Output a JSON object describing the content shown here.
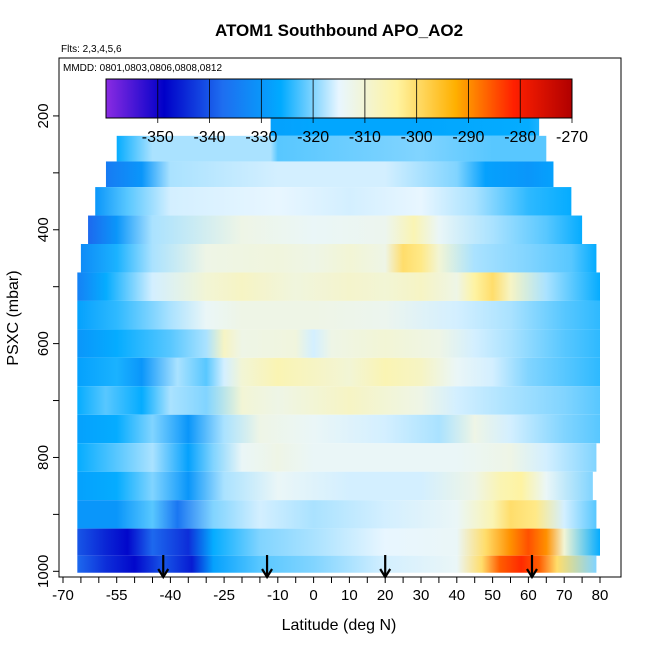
{
  "chart_data": {
    "type": "heatmap",
    "title": "ATOM1 Southbound APO_AO2",
    "flights_label": "Flts: 2,3,4,5,6",
    "dates_label": "MMDD: 0801,0803,0806,0808,0812",
    "xlabel": "Latitude (deg N)",
    "ylabel": "PSXC (mbar)",
    "xlim": [
      -70,
      80
    ],
    "ylim": [
      1010,
      100
    ],
    "x_ticks": [
      -70,
      -55,
      -40,
      -25,
      -10,
      0,
      10,
      20,
      30,
      40,
      50,
      60,
      70,
      80
    ],
    "y_ticks": [
      200,
      400,
      600,
      800,
      1000
    ],
    "colorbar": {
      "range": [
        -360,
        -270
      ],
      "ticks": [
        -350,
        -340,
        -330,
        -320,
        -310,
        -300,
        -290,
        -280,
        -270
      ],
      "colors": [
        "#8a2be2",
        "#0000c8",
        "#1e6ef0",
        "#00aaff",
        "#e8f6ff",
        "#fff3a0",
        "#ffb000",
        "#ff2000",
        "#b00000"
      ]
    },
    "profile_arrows_lat": [
      -42,
      -13,
      20,
      61
    ],
    "rows": [
      {
        "p": 210,
        "lat": [
          -12,
          63
        ],
        "v": [
          [
            -12,
            -328
          ],
          [
            0,
            -327
          ],
          [
            30,
            -327
          ],
          [
            60,
            -326
          ],
          [
            63,
            -325
          ]
        ]
      },
      {
        "p": 260,
        "lat": [
          -55,
          65
        ],
        "v": [
          [
            -55,
            -326
          ],
          [
            -45,
            -318
          ],
          [
            -12,
            -318
          ],
          [
            -10,
            -322
          ],
          [
            30,
            -320
          ],
          [
            50,
            -322
          ],
          [
            62,
            -322
          ],
          [
            65,
            -322
          ]
        ]
      },
      {
        "p": 300,
        "lat": [
          -58,
          67
        ],
        "v": [
          [
            -58,
            -335
          ],
          [
            -48,
            -330
          ],
          [
            -40,
            -318
          ],
          [
            -10,
            -316
          ],
          [
            20,
            -316
          ],
          [
            40,
            -320
          ],
          [
            48,
            -328
          ],
          [
            60,
            -330
          ],
          [
            67,
            -328
          ]
        ]
      },
      {
        "p": 350,
        "lat": [
          -61,
          72
        ],
        "v": [
          [
            -61,
            -330
          ],
          [
            -52,
            -322
          ],
          [
            -40,
            -316
          ],
          [
            -10,
            -315
          ],
          [
            10,
            -316
          ],
          [
            30,
            -315
          ],
          [
            45,
            -318
          ],
          [
            60,
            -324
          ],
          [
            72,
            -326
          ]
        ]
      },
      {
        "p": 400,
        "lat": [
          -63,
          75
        ],
        "v": [
          [
            -63,
            -338
          ],
          [
            -55,
            -330
          ],
          [
            -45,
            -318
          ],
          [
            -20,
            -312
          ],
          [
            0,
            -314
          ],
          [
            20,
            -313
          ],
          [
            28,
            -306
          ],
          [
            35,
            -314
          ],
          [
            50,
            -318
          ],
          [
            65,
            -322
          ],
          [
            75,
            -326
          ]
        ]
      },
      {
        "p": 450,
        "lat": [
          -65,
          79
        ],
        "v": [
          [
            -65,
            -332
          ],
          [
            -55,
            -325
          ],
          [
            -45,
            -318
          ],
          [
            -30,
            -312
          ],
          [
            -10,
            -311
          ],
          [
            0,
            -312
          ],
          [
            10,
            -310
          ],
          [
            20,
            -312
          ],
          [
            25,
            -300
          ],
          [
            30,
            -302
          ],
          [
            35,
            -310
          ],
          [
            45,
            -318
          ],
          [
            60,
            -320
          ],
          [
            72,
            -322
          ],
          [
            79,
            -326
          ]
        ]
      },
      {
        "p": 500,
        "lat": [
          -66,
          80
        ],
        "v": [
          [
            -66,
            -334
          ],
          [
            -58,
            -326
          ],
          [
            -45,
            -316
          ],
          [
            -30,
            -310
          ],
          [
            -20,
            -308
          ],
          [
            -5,
            -311
          ],
          [
            10,
            -309
          ],
          [
            20,
            -310
          ],
          [
            30,
            -308
          ],
          [
            40,
            -312
          ],
          [
            45,
            -304
          ],
          [
            50,
            -300
          ],
          [
            55,
            -308
          ],
          [
            65,
            -318
          ],
          [
            80,
            -326
          ]
        ]
      },
      {
        "p": 550,
        "lat": [
          -66,
          80
        ],
        "v": [
          [
            -66,
            -328
          ],
          [
            -55,
            -324
          ],
          [
            -40,
            -318
          ],
          [
            -30,
            -314
          ],
          [
            -20,
            -312
          ],
          [
            0,
            -312
          ],
          [
            20,
            -313
          ],
          [
            40,
            -316
          ],
          [
            55,
            -318
          ],
          [
            70,
            -322
          ],
          [
            80,
            -324
          ]
        ]
      },
      {
        "p": 600,
        "lat": [
          -66,
          80
        ],
        "v": [
          [
            -66,
            -330
          ],
          [
            -55,
            -326
          ],
          [
            -40,
            -322
          ],
          [
            -30,
            -318
          ],
          [
            -25,
            -308
          ],
          [
            -20,
            -312
          ],
          [
            -5,
            -311
          ],
          [
            0,
            -316
          ],
          [
            5,
            -312
          ],
          [
            20,
            -310
          ],
          [
            35,
            -312
          ],
          [
            45,
            -316
          ],
          [
            55,
            -318
          ],
          [
            70,
            -322
          ],
          [
            80,
            -324
          ]
        ]
      },
      {
        "p": 650,
        "lat": [
          -66,
          80
        ],
        "v": [
          [
            -66,
            -328
          ],
          [
            -55,
            -325
          ],
          [
            -48,
            -330
          ],
          [
            -38,
            -318
          ],
          [
            -30,
            -322
          ],
          [
            -25,
            -316
          ],
          [
            -20,
            -310
          ],
          [
            -10,
            -306
          ],
          [
            0,
            -308
          ],
          [
            10,
            -310
          ],
          [
            20,
            -306
          ],
          [
            30,
            -308
          ],
          [
            40,
            -314
          ],
          [
            50,
            -316
          ],
          [
            60,
            -320
          ],
          [
            70,
            -322
          ],
          [
            80,
            -324
          ]
        ]
      },
      {
        "p": 700,
        "lat": [
          -66,
          80
        ],
        "v": [
          [
            -66,
            -326
          ],
          [
            -58,
            -322
          ],
          [
            -48,
            -326
          ],
          [
            -40,
            -318
          ],
          [
            -30,
            -320
          ],
          [
            -20,
            -310
          ],
          [
            -10,
            -312
          ],
          [
            0,
            -310
          ],
          [
            10,
            -308
          ],
          [
            20,
            -310
          ],
          [
            30,
            -312
          ],
          [
            40,
            -316
          ],
          [
            55,
            -318
          ],
          [
            70,
            -320
          ],
          [
            80,
            -322
          ]
        ]
      },
      {
        "p": 750,
        "lat": [
          -66,
          80
        ],
        "v": [
          [
            -66,
            -328
          ],
          [
            -55,
            -326
          ],
          [
            -45,
            -320
          ],
          [
            -35,
            -330
          ],
          [
            -25,
            -318
          ],
          [
            -15,
            -312
          ],
          [
            0,
            -314
          ],
          [
            20,
            -316
          ],
          [
            35,
            -318
          ],
          [
            45,
            -312
          ],
          [
            55,
            -316
          ],
          [
            70,
            -320
          ],
          [
            80,
            -322
          ]
        ]
      },
      {
        "p": 800,
        "lat": [
          -66,
          79
        ],
        "v": [
          [
            -66,
            -326
          ],
          [
            -55,
            -322
          ],
          [
            -45,
            -318
          ],
          [
            -35,
            -328
          ],
          [
            -28,
            -320
          ],
          [
            -20,
            -314
          ],
          [
            -10,
            -312
          ],
          [
            0,
            -314
          ],
          [
            20,
            -314
          ],
          [
            40,
            -314
          ],
          [
            55,
            -312
          ],
          [
            65,
            -316
          ],
          [
            79,
            -320
          ]
        ]
      },
      {
        "p": 850,
        "lat": [
          -66,
          78
        ],
        "v": [
          [
            -66,
            -328
          ],
          [
            -55,
            -326
          ],
          [
            -45,
            -320
          ],
          [
            -35,
            -330
          ],
          [
            -25,
            -318
          ],
          [
            -10,
            -314
          ],
          [
            10,
            -316
          ],
          [
            30,
            -316
          ],
          [
            45,
            -312
          ],
          [
            52,
            -306
          ],
          [
            58,
            -304
          ],
          [
            65,
            -314
          ],
          [
            78,
            -320
          ]
        ]
      },
      {
        "p": 900,
        "lat": [
          -66,
          79
        ],
        "v": [
          [
            -66,
            -330
          ],
          [
            -55,
            -330
          ],
          [
            -45,
            -322
          ],
          [
            -38,
            -336
          ],
          [
            -28,
            -320
          ],
          [
            -15,
            -316
          ],
          [
            0,
            -318
          ],
          [
            20,
            -316
          ],
          [
            40,
            -314
          ],
          [
            50,
            -306
          ],
          [
            55,
            -300
          ],
          [
            62,
            -302
          ],
          [
            70,
            -316
          ],
          [
            79,
            -322
          ]
        ]
      },
      {
        "p": 950,
        "lat": [
          -66,
          80
        ],
        "v": [
          [
            -66,
            -340
          ],
          [
            -58,
            -345
          ],
          [
            -52,
            -348
          ],
          [
            -45,
            -338
          ],
          [
            -35,
            -344
          ],
          [
            -28,
            -326
          ],
          [
            -15,
            -320
          ],
          [
            0,
            -318
          ],
          [
            20,
            -315
          ],
          [
            40,
            -314
          ],
          [
            48,
            -300
          ],
          [
            55,
            -290
          ],
          [
            60,
            -285
          ],
          [
            65,
            -290
          ],
          [
            70,
            -310
          ],
          [
            80,
            -326
          ]
        ]
      },
      {
        "p": 995,
        "lat": [
          -66,
          79
        ],
        "v": [
          [
            -66,
            -338
          ],
          [
            -58,
            -344
          ],
          [
            -50,
            -348
          ],
          [
            -42,
            -340
          ],
          [
            -34,
            -346
          ],
          [
            -28,
            -328
          ],
          [
            -15,
            -322
          ],
          [
            0,
            -320
          ],
          [
            20,
            -316
          ],
          [
            40,
            -314
          ],
          [
            47,
            -300
          ],
          [
            52,
            -286
          ],
          [
            58,
            -282
          ],
          [
            63,
            -286
          ],
          [
            68,
            -300
          ],
          [
            79,
            -320
          ]
        ]
      }
    ]
  }
}
